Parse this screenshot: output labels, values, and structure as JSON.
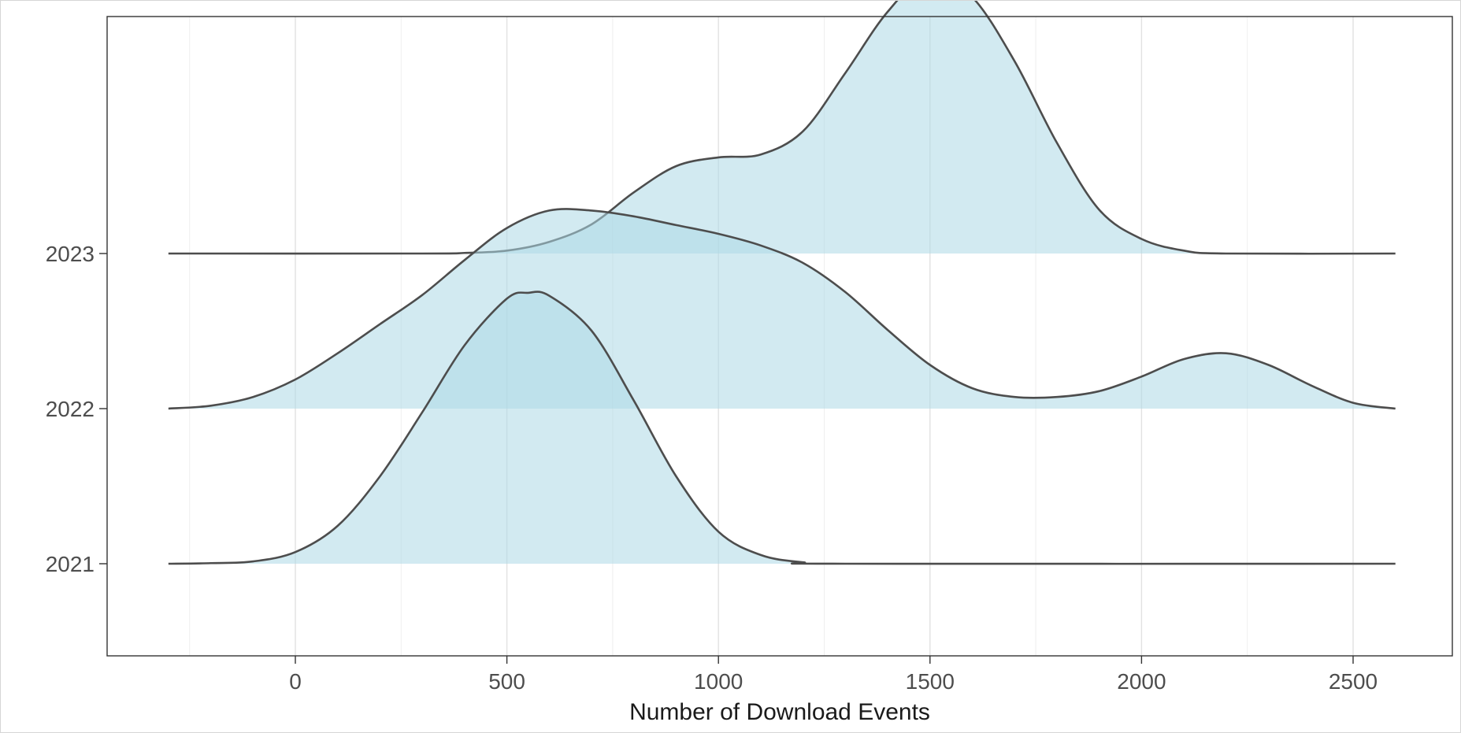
{
  "chart_data": {
    "type": "ridgeline",
    "xlabel": "Number of Download Events",
    "ylabel": "",
    "xlim": [
      -300,
      2600
    ],
    "x_ticks": [
      0,
      500,
      1000,
      1500,
      2000,
      2500
    ],
    "x_tick_labels": [
      "0",
      "500",
      "1000",
      "1500",
      "2000",
      "2500"
    ],
    "categories": [
      "2021",
      "2022",
      "2023"
    ],
    "grid": true,
    "fill_color": "#add8e6",
    "fill_opacity": 0.55,
    "line_color": "#4d4d4d",
    "series": [
      {
        "name": "2021",
        "points": [
          [
            -300,
            0
          ],
          [
            -200,
            0.002
          ],
          [
            -100,
            0.008
          ],
          [
            0,
            0.04
          ],
          [
            100,
            0.13
          ],
          [
            200,
            0.3
          ],
          [
            300,
            0.52
          ],
          [
            400,
            0.75
          ],
          [
            500,
            0.91
          ],
          [
            550,
            0.93
          ],
          [
            600,
            0.92
          ],
          [
            700,
            0.8
          ],
          [
            800,
            0.56
          ],
          [
            900,
            0.3
          ],
          [
            1000,
            0.11
          ],
          [
            1100,
            0.03
          ],
          [
            1200,
            0.005
          ],
          [
            1300,
            0
          ],
          [
            2600,
            0
          ]
        ]
      },
      {
        "name": "2022",
        "points": [
          [
            -300,
            0
          ],
          [
            -200,
            0.01
          ],
          [
            -100,
            0.04
          ],
          [
            0,
            0.1
          ],
          [
            100,
            0.19
          ],
          [
            200,
            0.29
          ],
          [
            300,
            0.39
          ],
          [
            400,
            0.51
          ],
          [
            500,
            0.62
          ],
          [
            600,
            0.68
          ],
          [
            700,
            0.68
          ],
          [
            800,
            0.66
          ],
          [
            900,
            0.63
          ],
          [
            1000,
            0.6
          ],
          [
            1100,
            0.56
          ],
          [
            1200,
            0.5
          ],
          [
            1300,
            0.4
          ],
          [
            1400,
            0.27
          ],
          [
            1500,
            0.15
          ],
          [
            1600,
            0.07
          ],
          [
            1700,
            0.04
          ],
          [
            1800,
            0.04
          ],
          [
            1900,
            0.06
          ],
          [
            2000,
            0.11
          ],
          [
            2100,
            0.17
          ],
          [
            2200,
            0.19
          ],
          [
            2300,
            0.15
          ],
          [
            2400,
            0.08
          ],
          [
            2500,
            0.02
          ],
          [
            2600,
            0
          ]
        ]
      },
      {
        "name": "2023",
        "points": [
          [
            -300,
            0
          ],
          [
            300,
            0
          ],
          [
            400,
            0.002
          ],
          [
            500,
            0.01
          ],
          [
            600,
            0.04
          ],
          [
            700,
            0.1
          ],
          [
            800,
            0.21
          ],
          [
            900,
            0.3
          ],
          [
            1000,
            0.33
          ],
          [
            1100,
            0.34
          ],
          [
            1200,
            0.42
          ],
          [
            1300,
            0.62
          ],
          [
            1400,
            0.83
          ],
          [
            1500,
            0.96
          ],
          [
            1600,
            0.88
          ],
          [
            1700,
            0.66
          ],
          [
            1800,
            0.38
          ],
          [
            1900,
            0.15
          ],
          [
            2000,
            0.05
          ],
          [
            2100,
            0.01
          ],
          [
            2200,
            0
          ],
          [
            2600,
            0
          ]
        ]
      }
    ]
  }
}
